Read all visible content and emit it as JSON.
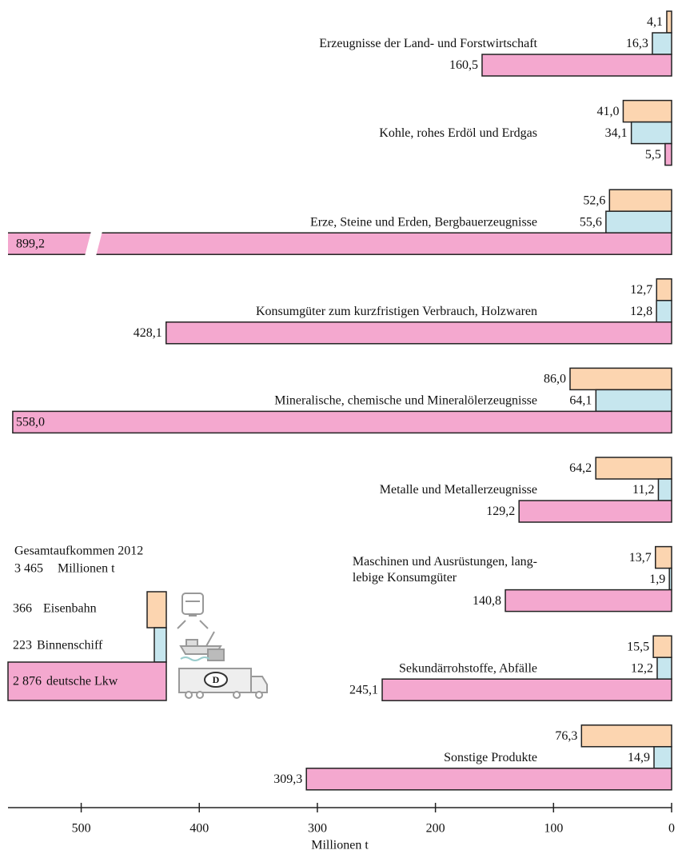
{
  "chart_data": {
    "type": "bar",
    "orientation": "horizontal",
    "x_reversed": true,
    "categories": [
      "Erzeugnisse der Land- und Forstwirtschaft",
      "Kohle, rohes Erdöl und Erdgas",
      "Erze, Steine und Erden, Bergbauerzeugnisse",
      "Konsumgüter zum kurzfristigen Verbrauch, Holzwaren",
      "Mineralische, chemische und Mineralölerzeugnisse",
      "Metalle und Metallerzeugnisse",
      "Maschinen und Ausrüstungen, lang-\nlebige Konsumgüter",
      "Sekundärrohstoffe, Abfälle",
      "Sonstige Produkte"
    ],
    "series": [
      {
        "name": "Eisenbahn",
        "color": "#fcd5b0",
        "total": 366,
        "values": [
          4.1,
          41.0,
          52.6,
          12.7,
          86.0,
          64.2,
          13.7,
          15.5,
          76.3
        ],
        "value_labels": [
          "4,1",
          "41,0",
          "52,6",
          "12,7",
          "86,0",
          "64,2",
          "13,7",
          "15,5",
          "76,3"
        ]
      },
      {
        "name": "Binnenschiff",
        "color": "#c6e6ee",
        "total": 223,
        "values": [
          16.3,
          34.1,
          55.6,
          12.8,
          64.1,
          11.2,
          1.9,
          12.2,
          14.9
        ],
        "value_labels": [
          "16,3",
          "34,1",
          "55,6",
          "12,8",
          "64,1",
          "11,2",
          "1,9",
          "12,2",
          "14,9"
        ]
      },
      {
        "name": "deutsche Lkw",
        "color": "#f4a8cf",
        "total": 2876,
        "total_label": "2 876",
        "values": [
          160.5,
          5.5,
          899.2,
          428.1,
          558.0,
          129.2,
          140.8,
          245.1,
          309.3
        ],
        "value_labels": [
          "160,5",
          "5,5",
          "899,2",
          "428,1",
          "558,0",
          "129,2",
          "140,8",
          "245,1",
          "309,3"
        ]
      }
    ],
    "legend_title": "Gesamtaufkommen 2012",
    "total": 3465,
    "total_label": "3 465",
    "total_unit": "Millionen t",
    "xlabel": "Millionen t",
    "xlim": [
      0,
      562
    ],
    "xticks": [
      0,
      100,
      200,
      300,
      400,
      500
    ]
  }
}
